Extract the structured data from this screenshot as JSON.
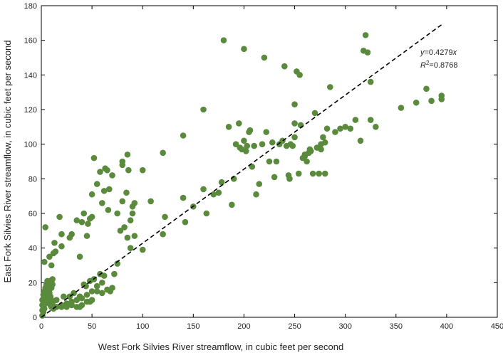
{
  "chart_data": {
    "type": "scatter",
    "title": "",
    "xlabel": "West Fork Silvies River streamflow, in cubic feet per second",
    "ylabel": "East Fork Silvies River streamflow, in cubic feet per second",
    "xlim": [
      0,
      450
    ],
    "ylim": [
      0,
      180
    ],
    "xticks": [
      0,
      50,
      100,
      150,
      200,
      250,
      300,
      350,
      400,
      450
    ],
    "yticks": [
      0,
      20,
      40,
      60,
      80,
      100,
      120,
      140,
      160,
      180
    ],
    "grid": false,
    "point_color": "#5a8a3c",
    "line_color": "#000000",
    "trendline": {
      "slope": 0.4279,
      "intercept": 0,
      "x_range": [
        0,
        397
      ],
      "style": "dashed",
      "equation_prefix": "y",
      "equation_value": "=0.4279",
      "equation_var": "x",
      "r2_prefix": "R",
      "r2_exponent": "2",
      "r2_value": "=0.8768"
    },
    "points": [
      [
        1,
        1
      ],
      [
        2,
        3
      ],
      [
        3,
        5
      ],
      [
        4,
        8
      ],
      [
        5,
        10
      ],
      [
        6,
        12
      ],
      [
        7,
        14
      ],
      [
        8,
        16
      ],
      [
        9,
        18
      ],
      [
        10,
        20
      ],
      [
        11,
        22
      ],
      [
        1,
        4
      ],
      [
        2,
        6
      ],
      [
        3,
        8
      ],
      [
        4,
        11
      ],
      [
        5,
        13
      ],
      [
        6,
        15
      ],
      [
        7,
        17
      ],
      [
        8,
        19
      ],
      [
        9,
        21
      ],
      [
        10,
        17
      ],
      [
        11,
        19
      ],
      [
        1,
        7
      ],
      [
        2,
        9
      ],
      [
        3,
        12
      ],
      [
        4,
        14
      ],
      [
        5,
        16
      ],
      [
        6,
        18
      ],
      [
        7,
        20
      ],
      [
        8,
        14
      ],
      [
        9,
        12
      ],
      [
        10,
        10
      ],
      [
        11,
        8
      ],
      [
        1,
        10
      ],
      [
        2,
        13
      ],
      [
        3,
        15
      ],
      [
        4,
        17
      ],
      [
        5,
        19
      ],
      [
        6,
        21
      ],
      [
        7,
        11
      ],
      [
        8,
        9
      ],
      [
        9,
        7
      ],
      [
        10,
        6
      ],
      [
        12,
        5
      ],
      [
        3,
        32
      ],
      [
        4,
        52
      ],
      [
        8,
        35
      ],
      [
        10,
        30
      ],
      [
        12,
        37
      ],
      [
        14,
        38
      ],
      [
        13,
        43
      ],
      [
        18,
        58
      ],
      [
        20,
        48
      ],
      [
        20,
        41
      ],
      [
        28,
        46
      ],
      [
        30,
        48
      ],
      [
        35,
        56
      ],
      [
        38,
        35
      ],
      [
        40,
        55
      ],
      [
        42,
        60
      ],
      [
        45,
        47
      ],
      [
        46,
        54
      ],
      [
        48,
        57
      ],
      [
        50,
        71
      ],
      [
        52,
        92
      ],
      [
        50,
        58
      ],
      [
        55,
        77
      ],
      [
        58,
        84
      ],
      [
        60,
        66
      ],
      [
        62,
        73
      ],
      [
        63,
        86
      ],
      [
        65,
        85
      ],
      [
        66,
        62
      ],
      [
        67,
        74
      ],
      [
        70,
        82
      ],
      [
        75,
        60
      ],
      [
        78,
        50
      ],
      [
        80,
        90
      ],
      [
        80,
        67
      ],
      [
        80,
        88
      ],
      [
        82,
        52
      ],
      [
        85,
        94
      ],
      [
        84,
        72
      ],
      [
        86,
        85
      ],
      [
        88,
        56
      ],
      [
        90,
        60
      ],
      [
        90,
        64
      ],
      [
        92,
        66
      ],
      [
        100,
        85
      ],
      [
        88,
        40
      ],
      [
        85,
        46
      ],
      [
        92,
        47
      ],
      [
        100,
        39
      ],
      [
        108,
        67
      ],
      [
        120,
        95
      ],
      [
        122,
        58
      ],
      [
        120,
        48
      ],
      [
        15,
        6
      ],
      [
        20,
        7
      ],
      [
        25,
        8
      ],
      [
        30,
        9
      ],
      [
        35,
        10
      ],
      [
        40,
        11
      ],
      [
        45,
        13
      ],
      [
        50,
        15
      ],
      [
        55,
        18
      ],
      [
        60,
        20
      ],
      [
        15,
        10
      ],
      [
        22,
        12
      ],
      [
        28,
        12
      ],
      [
        32,
        14
      ],
      [
        38,
        12
      ],
      [
        42,
        19
      ],
      [
        48,
        21
      ],
      [
        52,
        22
      ],
      [
        58,
        25
      ],
      [
        62,
        24
      ],
      [
        65,
        16
      ],
      [
        70,
        17
      ],
      [
        72,
        25
      ],
      [
        75,
        31
      ],
      [
        20,
        6
      ],
      [
        30,
        7
      ],
      [
        40,
        7
      ],
      [
        45,
        9
      ],
      [
        60,
        14
      ],
      [
        68,
        15
      ],
      [
        55,
        15
      ],
      [
        48,
        9
      ],
      [
        38,
        6
      ],
      [
        25,
        6
      ],
      [
        35,
        6
      ],
      [
        50,
        10
      ],
      [
        44,
        18
      ],
      [
        140,
        105
      ],
      [
        140,
        69
      ],
      [
        150,
        64
      ],
      [
        142,
        55
      ],
      [
        160,
        120
      ],
      [
        160,
        74
      ],
      [
        163,
        60
      ],
      [
        170,
        71
      ],
      [
        175,
        72
      ],
      [
        178,
        78
      ],
      [
        180,
        160
      ],
      [
        185,
        110
      ],
      [
        188,
        65
      ],
      [
        190,
        80
      ],
      [
        192,
        100
      ],
      [
        195,
        112
      ],
      [
        196,
        98
      ],
      [
        198,
        97
      ],
      [
        200,
        155
      ],
      [
        200,
        102
      ],
      [
        202,
        96
      ],
      [
        203,
        99
      ],
      [
        205,
        107
      ],
      [
        206,
        108
      ],
      [
        208,
        87
      ],
      [
        210,
        99
      ],
      [
        212,
        71
      ],
      [
        215,
        77
      ],
      [
        218,
        100
      ],
      [
        220,
        150
      ],
      [
        222,
        107
      ],
      [
        225,
        90
      ],
      [
        228,
        101
      ],
      [
        230,
        81
      ],
      [
        232,
        90
      ],
      [
        235,
        100
      ],
      [
        238,
        102
      ],
      [
        240,
        145
      ],
      [
        242,
        99
      ],
      [
        244,
        82
      ],
      [
        245,
        80
      ],
      [
        248,
        99
      ],
      [
        250,
        104
      ],
      [
        250,
        123
      ],
      [
        252,
        142
      ],
      [
        254,
        83
      ],
      [
        256,
        111
      ],
      [
        258,
        92
      ],
      [
        260,
        93
      ],
      [
        262,
        90
      ],
      [
        264,
        95
      ],
      [
        266,
        96
      ],
      [
        268,
        83
      ],
      [
        270,
        118
      ],
      [
        272,
        98
      ],
      [
        274,
        83
      ],
      [
        276,
        100
      ],
      [
        278,
        104
      ],
      [
        280,
        83
      ],
      [
        282,
        109
      ],
      [
        285,
        133
      ],
      [
        290,
        107
      ],
      [
        295,
        109
      ],
      [
        300,
        110
      ],
      [
        305,
        109
      ],
      [
        310,
        114
      ],
      [
        315,
        102
      ],
      [
        318,
        154
      ],
      [
        320,
        163
      ],
      [
        322,
        153
      ],
      [
        325,
        136
      ],
      [
        325,
        114
      ],
      [
        330,
        110
      ],
      [
        255,
        140
      ],
      [
        250,
        112
      ],
      [
        246,
        100
      ],
      [
        280,
        101
      ],
      [
        276,
        97
      ],
      [
        355,
        121
      ],
      [
        370,
        124
      ],
      [
        380,
        132
      ],
      [
        385,
        125
      ],
      [
        395,
        126
      ],
      [
        395,
        128
      ],
      [
        260,
        94
      ],
      [
        265,
        97
      ]
    ]
  }
}
